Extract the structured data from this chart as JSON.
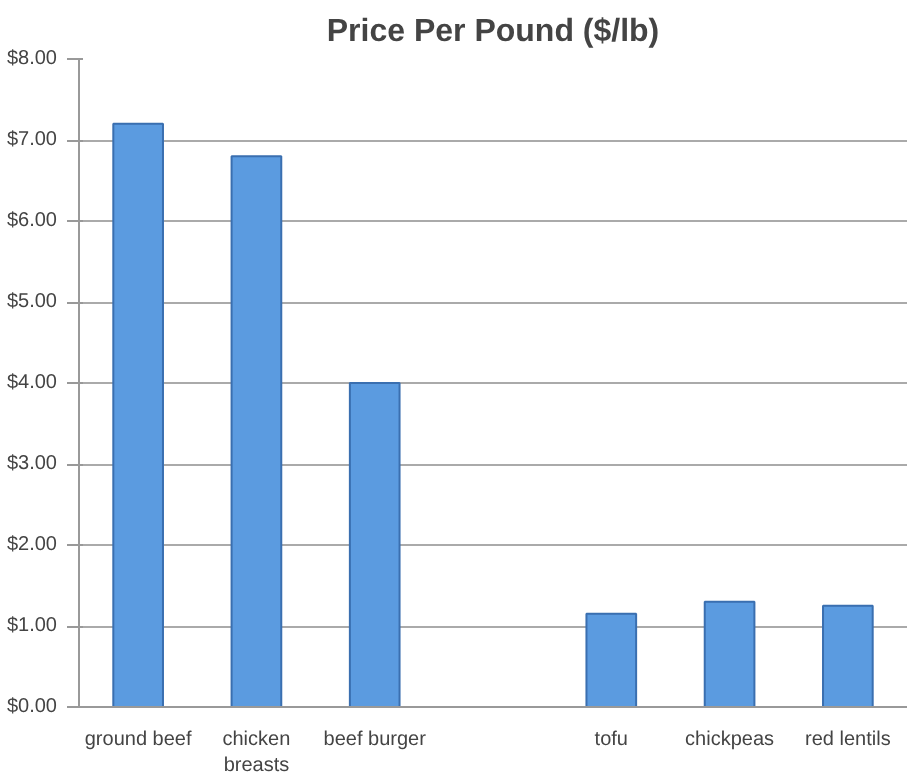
{
  "chart_data": {
    "type": "bar",
    "title": "Price Per Pound ($/lb)",
    "categories": [
      "ground beef",
      "chicken\nbreasts",
      "beef burger",
      null,
      "tofu",
      "chickpeas",
      "red lentils"
    ],
    "values": [
      7.2,
      6.8,
      4.0,
      null,
      1.15,
      1.3,
      1.25
    ],
    "color": "#5b9be0",
    "ylim": [
      0,
      8
    ],
    "yticks": [
      {
        "value": 0,
        "label": "$0.00"
      },
      {
        "value": 1,
        "label": "$1.00"
      },
      {
        "value": 2,
        "label": "$2.00"
      },
      {
        "value": 3,
        "label": "$3.00"
      },
      {
        "value": 4,
        "label": "$4.00"
      },
      {
        "value": 5,
        "label": "$5.00"
      },
      {
        "value": 6,
        "label": "$6.00"
      },
      {
        "value": 7,
        "label": "$7.00"
      },
      {
        "value": 8,
        "label": "$8.00"
      }
    ],
    "grid": "y"
  }
}
